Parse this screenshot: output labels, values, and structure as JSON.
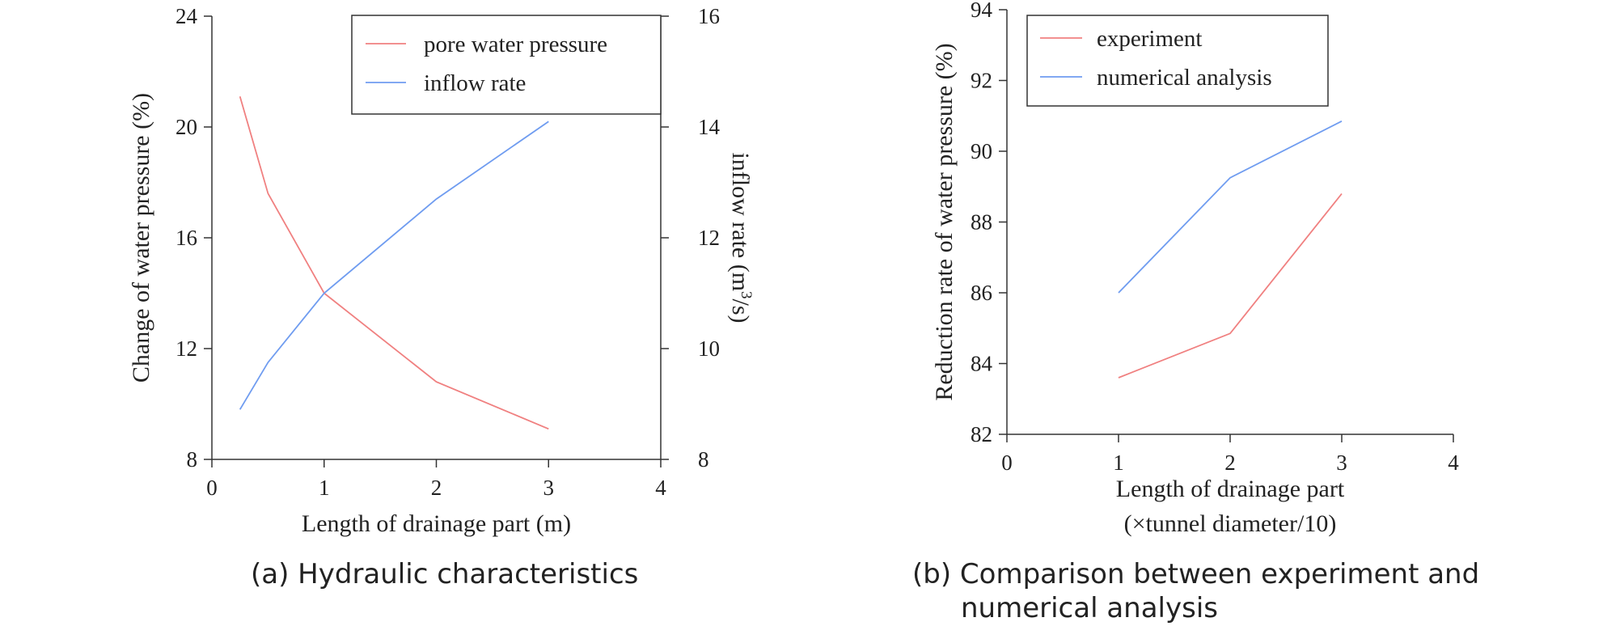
{
  "chart_data": [
    {
      "type": "line",
      "caption": "(a) Hydraulic characteristics",
      "xlabel": "Length of drainage part (m)",
      "ylabel": "Change of water pressure (%)",
      "y2label_main": "inflow rate (m",
      "y2label_sup": "3",
      "y2label_tail": "/s)",
      "xlim": [
        0,
        4
      ],
      "ylim": [
        8,
        24
      ],
      "y2lim": [
        8,
        16
      ],
      "xticks": [
        "0",
        "1",
        "2",
        "3",
        "4"
      ],
      "yticks": [
        "8",
        "12",
        "16",
        "20",
        "24"
      ],
      "y2ticks": [
        "8",
        "10",
        "12",
        "14",
        "16"
      ],
      "grid": false,
      "legend_position": "top-right",
      "series": [
        {
          "name": "pore water pressure",
          "axis": "left",
          "color": "#f08080",
          "x": [
            0.25,
            0.5,
            1,
            2,
            3
          ],
          "y": [
            21.1,
            17.6,
            14.0,
            10.8,
            9.1
          ]
        },
        {
          "name": "inflow rate",
          "axis": "right",
          "color": "#6f9cf0",
          "x": [
            0.25,
            0.5,
            1,
            2,
            3
          ],
          "y": [
            8.9,
            9.75,
            11.0,
            12.7,
            14.1
          ]
        }
      ]
    },
    {
      "type": "line",
      "caption_line1": "(b) Comparison between experiment and",
      "caption_line2": "numerical analysis",
      "xlabel_line1": "Length of drainage part",
      "xlabel_line2": "(×tunnel diameter/10)",
      "ylabel": "Reduction rate of water pressure (%)",
      "xlim": [
        0,
        4
      ],
      "ylim": [
        82,
        94
      ],
      "xticks": [
        "0",
        "1",
        "2",
        "3",
        "4"
      ],
      "yticks": [
        "82",
        "84",
        "86",
        "88",
        "90",
        "92",
        "94"
      ],
      "grid": false,
      "legend_position": "top-left",
      "series": [
        {
          "name": "experiment",
          "color": "#f08080",
          "x": [
            1,
            2,
            3
          ],
          "y": [
            83.6,
            84.85,
            88.8
          ]
        },
        {
          "name": "numerical analysis",
          "color": "#6f9cf0",
          "x": [
            1,
            2,
            3
          ],
          "y": [
            86.0,
            89.25,
            90.85
          ]
        }
      ]
    }
  ]
}
